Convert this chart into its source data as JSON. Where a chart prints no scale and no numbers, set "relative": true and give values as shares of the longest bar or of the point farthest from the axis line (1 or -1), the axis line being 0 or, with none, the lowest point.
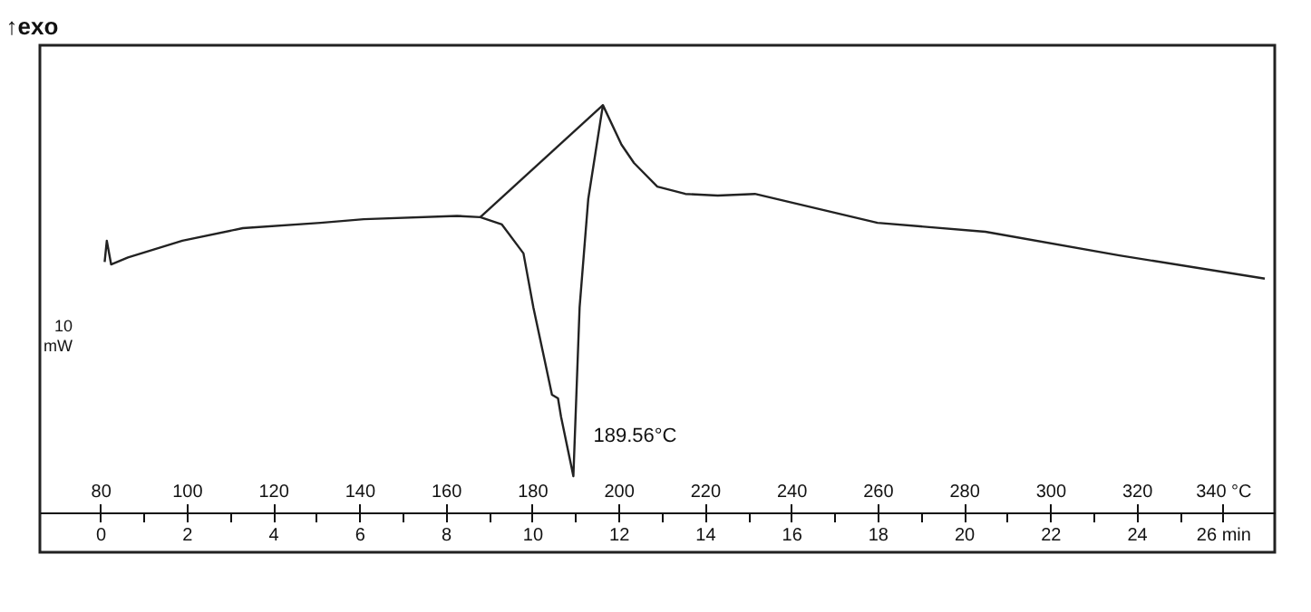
{
  "chart_data": {
    "type": "line",
    "title": "↑exo",
    "relative": true,
    "xlim": [
      66,
      352
    ],
    "xticks": [
      80,
      100,
      120,
      140,
      160,
      180,
      200,
      220,
      240,
      260,
      280,
      300,
      320,
      {
        "value": 340,
        "label": "340 °C"
      }
    ],
    "x2lim": [
      -1.4,
      27.2
    ],
    "x2ticks": [
      0,
      {
        "value": 1,
        "label": null
      },
      2,
      {
        "value": 3,
        "label": null
      },
      4,
      {
        "value": 5,
        "label": null
      },
      6,
      {
        "value": 7,
        "label": null
      },
      8,
      {
        "value": 9,
        "label": null
      },
      10,
      {
        "value": 11,
        "label": null
      },
      12,
      {
        "value": 13,
        "label": null
      },
      14,
      {
        "value": 15,
        "label": null
      },
      16,
      {
        "value": 17,
        "label": null
      },
      18,
      {
        "value": 19,
        "label": null
      },
      20,
      {
        "value": 21,
        "label": null
      },
      22,
      {
        "value": 23,
        "label": null
      },
      24,
      {
        "value": 25,
        "label": null
      },
      {
        "value": 26,
        "label": "26 min"
      }
    ],
    "series": [
      {
        "color": "#222222",
        "x": [
          81,
          81.5,
          82.5,
          86.4,
          99,
          113,
          131,
          141,
          162.6,
          168,
          173,
          178,
          180.3,
          183,
          184.6,
          186,
          186.7,
          189.56,
          191,
          192,
          193,
          196.4,
          200.7,
          203.6,
          209,
          215.5,
          223,
          231.6,
          260,
          285,
          316,
          349.7
        ],
        "values": [
          0.615,
          0.667,
          0.609,
          0.626,
          0.667,
          0.698,
          0.711,
          0.72,
          0.728,
          0.725,
          0.707,
          0.636,
          0.503,
          0.369,
          0.289,
          0.28,
          0.235,
          0.089,
          0.503,
          0.636,
          0.769,
          1.0,
          0.903,
          0.858,
          0.8,
          0.782,
          0.778,
          0.782,
          0.711,
          0.689,
          0.631,
          0.574
        ]
      },
      {
        "type": "line",
        "color": "#222222",
        "x": [
          168,
          196.4
        ],
        "values": [
          0.725,
          1.0
        ]
      }
    ],
    "annotations": [
      "10 mW",
      {
        "text": "189.56°C",
        "x": 189.56,
        "y": 0.089
      }
    ]
  }
}
